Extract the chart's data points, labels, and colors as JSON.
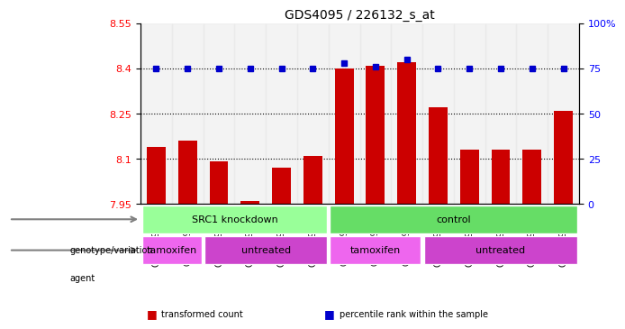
{
  "title": "GDS4095 / 226132_s_at",
  "samples": [
    "GSM709767",
    "GSM709769",
    "GSM709765",
    "GSM709771",
    "GSM709772",
    "GSM709775",
    "GSM709764",
    "GSM709766",
    "GSM709768",
    "GSM709777",
    "GSM709770",
    "GSM709773",
    "GSM709774",
    "GSM709776"
  ],
  "bar_values": [
    8.14,
    8.16,
    8.09,
    7.96,
    8.07,
    8.11,
    8.4,
    8.41,
    8.42,
    8.27,
    8.13,
    8.13,
    8.13,
    8.26
  ],
  "percentile_values": [
    75,
    75,
    75,
    75,
    75,
    75,
    78,
    76,
    80,
    75,
    75,
    75,
    75,
    75
  ],
  "ylim_left": [
    7.95,
    8.55
  ],
  "ylim_right": [
    0,
    100
  ],
  "yticks_left": [
    7.95,
    8.1,
    8.25,
    8.4,
    8.55
  ],
  "yticks_right": [
    0,
    25,
    50,
    75,
    100
  ],
  "hlines": [
    8.1,
    8.25,
    8.4
  ],
  "bar_color": "#cc0000",
  "dot_color": "#0000cc",
  "background_plot": "#ffffff",
  "genotype_groups": [
    {
      "label": "SRC1 knockdown",
      "start": 0,
      "end": 6,
      "color": "#99ff99"
    },
    {
      "label": "control",
      "start": 6,
      "end": 14,
      "color": "#66dd66"
    }
  ],
  "agent_groups": [
    {
      "label": "tamoxifen",
      "start": 0,
      "end": 2,
      "color": "#ff66ff"
    },
    {
      "label": "untreated",
      "start": 2,
      "end": 6,
      "color": "#cc44cc"
    },
    {
      "label": "tamoxifen",
      "start": 6,
      "end": 9,
      "color": "#ff66ff"
    },
    {
      "label": "untreated",
      "start": 9,
      "end": 14,
      "color": "#cc44cc"
    }
  ],
  "legend_items": [
    {
      "label": "transformed count",
      "color": "#cc0000",
      "marker": "s"
    },
    {
      "label": "percentile rank within the sample",
      "color": "#0000cc",
      "marker": "s"
    }
  ]
}
